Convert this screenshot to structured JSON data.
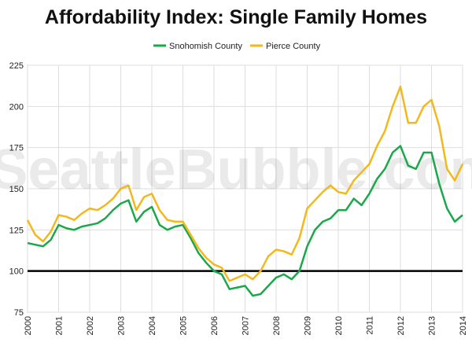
{
  "chart_data": {
    "type": "line",
    "title": "Affordability Index: Single Family Homes",
    "watermark": "SeattleBubble.com",
    "x": [
      2000,
      2000.25,
      2000.5,
      2000.75,
      2001,
      2001.25,
      2001.5,
      2001.75,
      2002,
      2002.25,
      2002.5,
      2002.75,
      2003,
      2003.25,
      2003.5,
      2003.75,
      2004,
      2004.25,
      2004.5,
      2004.75,
      2005,
      2005.25,
      2005.5,
      2005.75,
      2006,
      2006.25,
      2006.5,
      2006.75,
      2007,
      2007.25,
      2007.5,
      2007.75,
      2008,
      2008.25,
      2008.5,
      2008.75,
      2009,
      2009.25,
      2009.5,
      2009.75,
      2010,
      2010.25,
      2010.5,
      2010.75,
      2011,
      2011.25,
      2011.5,
      2011.75,
      2012,
      2012.25,
      2012.5,
      2012.75,
      2013,
      2013.25,
      2013.5,
      2013.75,
      2014
    ],
    "series": [
      {
        "name": "Snohomish County",
        "color": "#1aa84a",
        "values": [
          117,
          116,
          115,
          119,
          128,
          126,
          125,
          127,
          128,
          129,
          132,
          137,
          141,
          143,
          130,
          136,
          139,
          128,
          125,
          127,
          128,
          120,
          111,
          105,
          100,
          98,
          89,
          90,
          91,
          85,
          86,
          91,
          96,
          98,
          95,
          100,
          115,
          125,
          130,
          132,
          137,
          137,
          144,
          140,
          147,
          156,
          162,
          172,
          176,
          164,
          162,
          172,
          172,
          153,
          138,
          130,
          134
        ]
      },
      {
        "name": "Pierce County",
        "color": "#f2b81c",
        "values": [
          131,
          122,
          118,
          124,
          134,
          133,
          131,
          135,
          138,
          137,
          140,
          144,
          150,
          152,
          137,
          145,
          147,
          137,
          131,
          130,
          130,
          122,
          114,
          108,
          104,
          102,
          94,
          96,
          98,
          95,
          100,
          109,
          113,
          112,
          110,
          120,
          138,
          143,
          148,
          152,
          148,
          147,
          155,
          160,
          165,
          176,
          185,
          200,
          212,
          190,
          190,
          200,
          204,
          188,
          162,
          155,
          165
        ]
      }
    ],
    "xlim": [
      2000,
      2014
    ],
    "xticks": [
      2000,
      2001,
      2002,
      2003,
      2004,
      2005,
      2006,
      2007,
      2008,
      2009,
      2010,
      2011,
      2012,
      2013,
      2014
    ],
    "ylim": [
      75,
      225
    ],
    "yticks": [
      75,
      100,
      125,
      150,
      175,
      200,
      225
    ],
    "reference_line": 100,
    "grid": true,
    "legend": "top"
  }
}
